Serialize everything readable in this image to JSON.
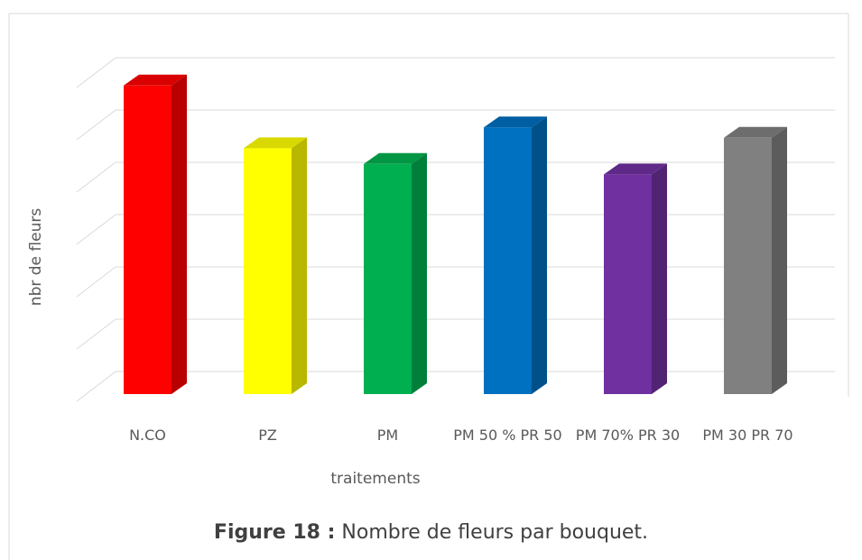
{
  "chart_data": {
    "type": "bar3d",
    "categories": [
      "N.CO",
      "PZ",
      "PM",
      "PM 50 % PR 50",
      "PM 70% PR 30",
      "PM 30 PR 70"
    ],
    "values": [
      5.9,
      4.7,
      4.4,
      5.1,
      4.2,
      4.9
    ],
    "colors": [
      "#ff0000",
      "#ffff00",
      "#00b050",
      "#0070c0",
      "#7030a0",
      "#808080"
    ],
    "xlabel": "traitements",
    "ylabel": "nbr de fleurs",
    "ylim": [
      0,
      6
    ],
    "yticks": [
      0,
      1,
      2,
      3,
      4,
      5,
      6
    ],
    "grid": true
  },
  "caption": {
    "label": "Figure 18 :",
    "text": "Nombre de fleurs par bouquet."
  }
}
